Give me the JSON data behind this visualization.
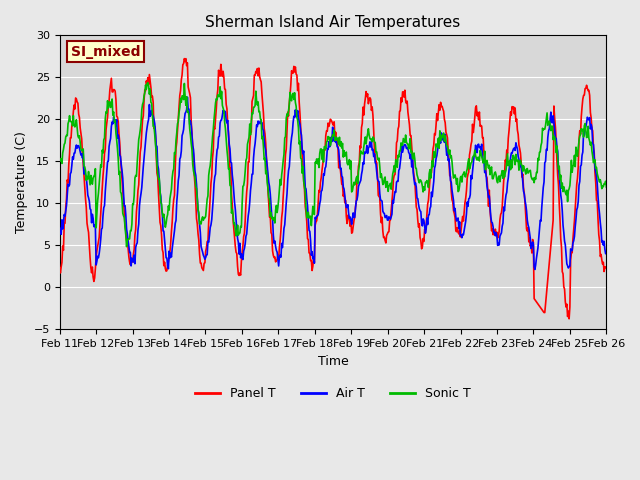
{
  "title": "Sherman Island Air Temperatures",
  "xlabel": "Time",
  "ylabel": "Temperature (C)",
  "ylim": [
    -5,
    30
  ],
  "background_color": "#e8e8e8",
  "plot_bg_color": "#d8d8d8",
  "annotation_text": "SI_mixed",
  "annotation_color": "#8b0000",
  "annotation_bg": "#ffffcc",
  "x_tick_labels": [
    "Feb 11",
    "Feb 12",
    "Feb 13",
    "Feb 14",
    "Feb 15",
    "Feb 16",
    "Feb 17",
    "Feb 18",
    "Feb 19",
    "Feb 20",
    "Feb 21",
    "Feb 22",
    "Feb 23",
    "Feb 24",
    "Feb 25",
    "Feb 26"
  ],
  "red_color": "#ff0000",
  "blue_color": "#0000ff",
  "green_color": "#00bb00",
  "legend_labels": [
    "Panel T",
    "Air T",
    "Sonic T"
  ],
  "grid_color": "#ffffff",
  "yticks": [
    -5,
    0,
    5,
    10,
    15,
    20,
    25,
    30
  ]
}
